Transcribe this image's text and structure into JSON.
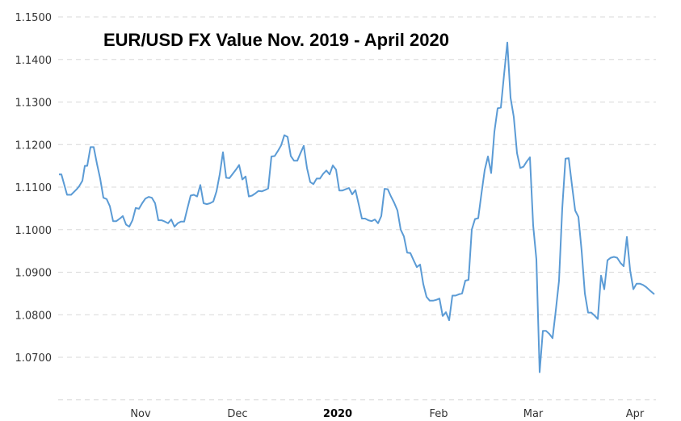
{
  "chart_data": {
    "type": "line",
    "title": "EUR/USD FX Value Nov. 2019 - April 2020",
    "xlabel": "",
    "ylabel": "",
    "ylim": [
      1.06,
      1.15
    ],
    "grid": true,
    "legend": null,
    "y_ticks": [
      "1.1500",
      "1.1400",
      "1.1300",
      "1.1200",
      "1.1100",
      "1.1000",
      "1.0900",
      "1.0800",
      "1.0700"
    ],
    "x_ticks": [
      {
        "label": "Nov",
        "bold": false
      },
      {
        "label": "Dec",
        "bold": false
      },
      {
        "label": "2020",
        "bold": true
      },
      {
        "label": "Feb",
        "bold": false
      },
      {
        "label": "Mar",
        "bold": false
      },
      {
        "label": "Apr",
        "bold": false
      }
    ],
    "series": [
      {
        "name": "EUR/USD",
        "color": "#5b9bd5",
        "points": [
          [
            73,
            1.113
          ],
          [
            76,
            1.113
          ],
          [
            83,
            1.1082
          ],
          [
            88,
            1.1082
          ],
          [
            95,
            1.1095
          ],
          [
            98,
            1.1102
          ],
          [
            102,
            1.1115
          ],
          [
            105,
            1.115
          ],
          [
            108,
            1.115
          ],
          [
            112,
            1.1194
          ],
          [
            116,
            1.1194
          ],
          [
            120,
            1.1155
          ],
          [
            124,
            1.112
          ],
          [
            128,
            1.1075
          ],
          [
            132,
            1.1072
          ],
          [
            136,
            1.1055
          ],
          [
            140,
            1.102
          ],
          [
            144,
            1.102
          ],
          [
            149,
            1.1027
          ],
          [
            152,
            1.1032
          ],
          [
            156,
            1.1012
          ],
          [
            160,
            1.1007
          ],
          [
            164,
            1.1022
          ],
          [
            168,
            1.1051
          ],
          [
            172,
            1.1049
          ],
          [
            176,
            1.1062
          ],
          [
            180,
            1.1073
          ],
          [
            184,
            1.1077
          ],
          [
            188,
            1.1075
          ],
          [
            192,
            1.1062
          ],
          [
            196,
            1.1022
          ],
          [
            200,
            1.1022
          ],
          [
            204,
            1.1019
          ],
          [
            208,
            1.1015
          ],
          [
            212,
            1.1024
          ],
          [
            216,
            1.1007
          ],
          [
            220,
            1.1015
          ],
          [
            224,
            1.1019
          ],
          [
            228,
            1.1019
          ],
          [
            232,
            1.105
          ],
          [
            236,
            1.108
          ],
          [
            240,
            1.1082
          ],
          [
            244,
            1.1078
          ],
          [
            248,
            1.1105
          ],
          [
            252,
            1.1062
          ],
          [
            256,
            1.106
          ],
          [
            260,
            1.1062
          ],
          [
            264,
            1.1066
          ],
          [
            268,
            1.109
          ],
          [
            272,
            1.113
          ],
          [
            276,
            1.1182
          ],
          [
            280,
            1.1122
          ],
          [
            284,
            1.1121
          ],
          [
            288,
            1.1131
          ],
          [
            292,
            1.1141
          ],
          [
            296,
            1.1152
          ],
          [
            300,
            1.1118
          ],
          [
            304,
            1.1125
          ],
          [
            308,
            1.1078
          ],
          [
            312,
            1.108
          ],
          [
            316,
            1.1085
          ],
          [
            320,
            1.1091
          ],
          [
            324,
            1.109
          ],
          [
            328,
            1.1093
          ],
          [
            332,
            1.1097
          ],
          [
            336,
            1.1172
          ],
          [
            340,
            1.1173
          ],
          [
            344,
            1.1185
          ],
          [
            348,
            1.1198
          ],
          [
            352,
            1.1222
          ],
          [
            356,
            1.1218
          ],
          [
            360,
            1.1173
          ],
          [
            364,
            1.1162
          ],
          [
            368,
            1.1162
          ],
          [
            372,
            1.118
          ],
          [
            376,
            1.1197
          ],
          [
            380,
            1.1145
          ],
          [
            384,
            1.1112
          ],
          [
            388,
            1.1107
          ],
          [
            392,
            1.112
          ],
          [
            396,
            1.112
          ],
          [
            400,
            1.1131
          ],
          [
            404,
            1.1139
          ],
          [
            408,
            1.113
          ],
          [
            412,
            1.1151
          ],
          [
            416,
            1.1141
          ],
          [
            420,
            1.1092
          ],
          [
            424,
            1.1092
          ],
          [
            428,
            1.1095
          ],
          [
            432,
            1.1098
          ],
          [
            436,
            1.1083
          ],
          [
            440,
            1.1093
          ],
          [
            444,
            1.106
          ],
          [
            448,
            1.1026
          ],
          [
            452,
            1.1026
          ],
          [
            456,
            1.1022
          ],
          [
            460,
            1.102
          ],
          [
            464,
            1.1024
          ],
          [
            468,
            1.1015
          ],
          [
            472,
            1.1032
          ],
          [
            476,
            1.1096
          ],
          [
            480,
            1.1095
          ],
          [
            484,
            1.1078
          ],
          [
            488,
            1.1063
          ],
          [
            492,
            1.1045
          ],
          [
            496,
            1.1
          ],
          [
            500,
            1.0984
          ],
          [
            504,
            1.0946
          ],
          [
            508,
            1.0945
          ],
          [
            512,
            1.0928
          ],
          [
            516,
            1.0912
          ],
          [
            520,
            1.0918
          ],
          [
            524,
            1.0872
          ],
          [
            528,
            1.0842
          ],
          [
            532,
            1.0833
          ],
          [
            536,
            1.0833
          ],
          [
            540,
            1.0835
          ],
          [
            544,
            1.0838
          ],
          [
            548,
            1.0797
          ],
          [
            552,
            1.0806
          ],
          [
            556,
            1.0787
          ],
          [
            560,
            1.0845
          ],
          [
            564,
            1.0845
          ],
          [
            568,
            1.0848
          ],
          [
            572,
            1.085
          ],
          [
            576,
            1.088
          ],
          [
            580,
            1.0882
          ],
          [
            584,
            1.1
          ],
          [
            588,
            1.1025
          ],
          [
            592,
            1.1027
          ],
          [
            596,
            1.1085
          ],
          [
            600,
            1.114
          ],
          [
            604,
            1.1172
          ],
          [
            608,
            1.1133
          ],
          [
            612,
            1.123
          ],
          [
            616,
            1.1285
          ],
          [
            620,
            1.1287
          ],
          [
            624,
            1.1365
          ],
          [
            628,
            1.144
          ],
          [
            632,
            1.131
          ],
          [
            636,
            1.1265
          ],
          [
            640,
            1.118
          ],
          [
            644,
            1.1145
          ],
          [
            648,
            1.1148
          ],
          [
            652,
            1.116
          ],
          [
            656,
            1.117
          ],
          [
            660,
            1.101
          ],
          [
            664,
            1.093
          ],
          [
            668,
            1.0665
          ],
          [
            672,
            1.0762
          ],
          [
            676,
            1.0762
          ],
          [
            680,
            1.0755
          ],
          [
            684,
            1.0745
          ],
          [
            688,
            1.081
          ],
          [
            692,
            1.088
          ],
          [
            696,
            1.105
          ],
          [
            700,
            1.1167
          ],
          [
            704,
            1.1168
          ],
          [
            708,
            1.1105
          ],
          [
            712,
            1.1045
          ],
          [
            716,
            1.103
          ],
          [
            720,
            1.095
          ],
          [
            724,
            1.085
          ],
          [
            728,
            1.0805
          ],
          [
            732,
            1.0805
          ],
          [
            736,
            1.0798
          ],
          [
            740,
            1.079
          ],
          [
            744,
            1.0892
          ],
          [
            748,
            1.086
          ],
          [
            752,
            1.0928
          ],
          [
            756,
            1.0934
          ],
          [
            760,
            1.0936
          ],
          [
            764,
            1.0934
          ],
          [
            768,
            1.0922
          ],
          [
            772,
            1.0914
          ],
          [
            776,
            1.0983
          ],
          [
            780,
            1.0905
          ],
          [
            784,
            1.086
          ],
          [
            788,
            1.0873
          ],
          [
            792,
            1.0873
          ],
          [
            796,
            1.087
          ],
          [
            800,
            1.0865
          ],
          [
            804,
            1.0858
          ],
          [
            810,
            1.0848
          ]
        ]
      }
    ]
  }
}
